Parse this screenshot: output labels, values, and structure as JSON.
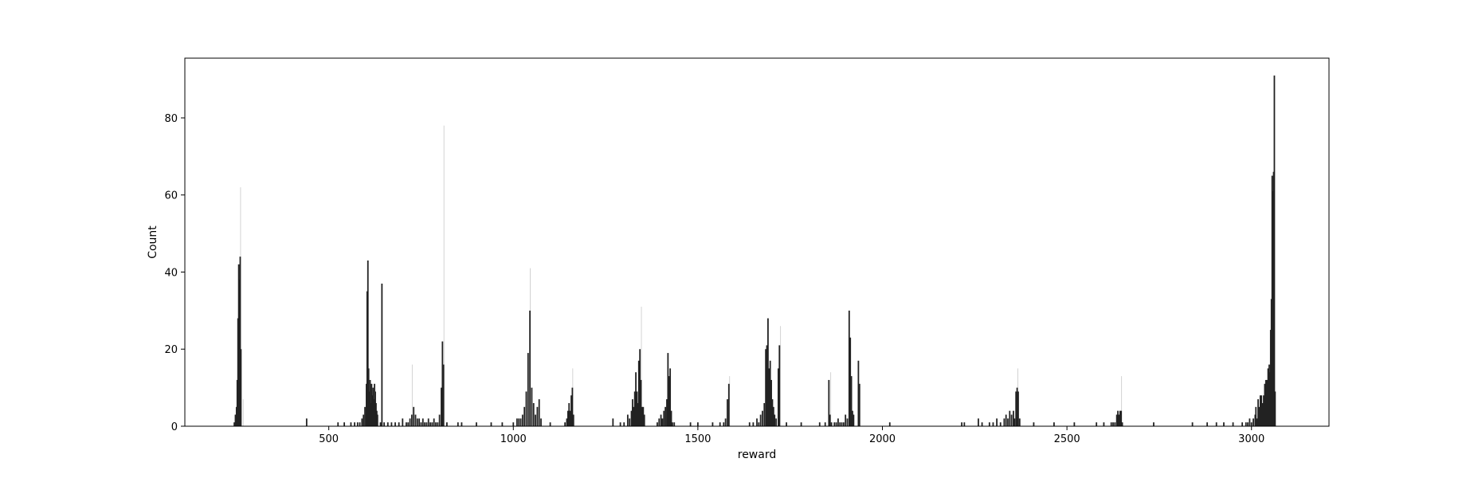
{
  "chart_data": {
    "type": "bar",
    "title": "",
    "xlabel": "reward",
    "ylabel": "Count",
    "xlim": [
      110,
      3210
    ],
    "ylim": [
      0,
      95.5
    ],
    "xticks": [
      500,
      1000,
      1500,
      2000,
      2500,
      3000
    ],
    "yticks": [
      0,
      20,
      40,
      60,
      80
    ],
    "grid": false,
    "legend": "none",
    "bar_color": "#222222",
    "faint_color": "#c8c8c8",
    "series": [
      {
        "values": [
          [
            244,
            1
          ],
          [
            247,
            3
          ],
          [
            250,
            5
          ],
          [
            252,
            12
          ],
          [
            254,
            28
          ],
          [
            256,
            42
          ],
          [
            258,
            38
          ],
          [
            260,
            44
          ],
          [
            262,
            20
          ],
          [
            440,
            2
          ],
          [
            525,
            1
          ],
          [
            542,
            1
          ],
          [
            560,
            1
          ],
          [
            570,
            1
          ],
          [
            578,
            1
          ],
          [
            584,
            1
          ],
          [
            590,
            2
          ],
          [
            594,
            3
          ],
          [
            598,
            5
          ],
          [
            602,
            11
          ],
          [
            604,
            35
          ],
          [
            606,
            43
          ],
          [
            608,
            15
          ],
          [
            610,
            9
          ],
          [
            612,
            12
          ],
          [
            614,
            6
          ],
          [
            616,
            11
          ],
          [
            618,
            8
          ],
          [
            620,
            10
          ],
          [
            622,
            7
          ],
          [
            624,
            11
          ],
          [
            626,
            9
          ],
          [
            628,
            6
          ],
          [
            630,
            4
          ],
          [
            632,
            3
          ],
          [
            640,
            1
          ],
          [
            644,
            37
          ],
          [
            650,
            1
          ],
          [
            660,
            1
          ],
          [
            670,
            1
          ],
          [
            680,
            1
          ],
          [
            690,
            1
          ],
          [
            700,
            2
          ],
          [
            710,
            1
          ],
          [
            715,
            1
          ],
          [
            720,
            2
          ],
          [
            725,
            3
          ],
          [
            730,
            5
          ],
          [
            735,
            3
          ],
          [
            740,
            2
          ],
          [
            745,
            2
          ],
          [
            750,
            1
          ],
          [
            755,
            2
          ],
          [
            760,
            1
          ],
          [
            765,
            1
          ],
          [
            770,
            2
          ],
          [
            775,
            1
          ],
          [
            780,
            1
          ],
          [
            785,
            2
          ],
          [
            790,
            1
          ],
          [
            795,
            1
          ],
          [
            800,
            3
          ],
          [
            805,
            10
          ],
          [
            808,
            22
          ],
          [
            811,
            16
          ],
          [
            820,
            1
          ],
          [
            850,
            1
          ],
          [
            860,
            1
          ],
          [
            900,
            1
          ],
          [
            940,
            1
          ],
          [
            970,
            1
          ],
          [
            1000,
            1
          ],
          [
            1010,
            2
          ],
          [
            1015,
            2
          ],
          [
            1020,
            2
          ],
          [
            1025,
            3
          ],
          [
            1030,
            5
          ],
          [
            1035,
            9
          ],
          [
            1040,
            19
          ],
          [
            1045,
            30
          ],
          [
            1050,
            10
          ],
          [
            1055,
            6
          ],
          [
            1060,
            3
          ],
          [
            1065,
            5
          ],
          [
            1070,
            7
          ],
          [
            1075,
            2
          ],
          [
            1100,
            1
          ],
          [
            1140,
            1
          ],
          [
            1145,
            2
          ],
          [
            1148,
            4
          ],
          [
            1151,
            6
          ],
          [
            1154,
            4
          ],
          [
            1157,
            8
          ],
          [
            1160,
            10
          ],
          [
            1163,
            3
          ],
          [
            1270,
            2
          ],
          [
            1290,
            1
          ],
          [
            1300,
            1
          ],
          [
            1310,
            3
          ],
          [
            1315,
            2
          ],
          [
            1320,
            4
          ],
          [
            1323,
            7
          ],
          [
            1326,
            5
          ],
          [
            1329,
            9
          ],
          [
            1332,
            14
          ],
          [
            1335,
            9
          ],
          [
            1338,
            6
          ],
          [
            1340,
            17
          ],
          [
            1343,
            20
          ],
          [
            1346,
            12
          ],
          [
            1349,
            5
          ],
          [
            1352,
            5
          ],
          [
            1355,
            3
          ],
          [
            1390,
            1
          ],
          [
            1395,
            2
          ],
          [
            1400,
            3
          ],
          [
            1404,
            2
          ],
          [
            1408,
            4
          ],
          [
            1412,
            5
          ],
          [
            1416,
            7
          ],
          [
            1419,
            19
          ],
          [
            1422,
            13
          ],
          [
            1425,
            15
          ],
          [
            1428,
            4
          ],
          [
            1431,
            1
          ],
          [
            1436,
            1
          ],
          [
            1480,
            1
          ],
          [
            1500,
            1
          ],
          [
            1540,
            1
          ],
          [
            1560,
            1
          ],
          [
            1570,
            1
          ],
          [
            1575,
            2
          ],
          [
            1580,
            7
          ],
          [
            1584,
            11
          ],
          [
            1640,
            1
          ],
          [
            1650,
            1
          ],
          [
            1660,
            2
          ],
          [
            1665,
            1
          ],
          [
            1670,
            3
          ],
          [
            1675,
            4
          ],
          [
            1680,
            6
          ],
          [
            1684,
            20
          ],
          [
            1687,
            21
          ],
          [
            1690,
            28
          ],
          [
            1693,
            15
          ],
          [
            1696,
            17
          ],
          [
            1699,
            12
          ],
          [
            1702,
            7
          ],
          [
            1705,
            5
          ],
          [
            1708,
            3
          ],
          [
            1712,
            2
          ],
          [
            1718,
            15
          ],
          [
            1721,
            21
          ],
          [
            1740,
            1
          ],
          [
            1780,
            1
          ],
          [
            1830,
            1
          ],
          [
            1845,
            1
          ],
          [
            1855,
            12
          ],
          [
            1858,
            3
          ],
          [
            1862,
            1
          ],
          [
            1870,
            1
          ],
          [
            1875,
            1
          ],
          [
            1880,
            2
          ],
          [
            1885,
            1
          ],
          [
            1890,
            1
          ],
          [
            1895,
            1
          ],
          [
            1900,
            3
          ],
          [
            1905,
            2
          ],
          [
            1910,
            30
          ],
          [
            1913,
            23
          ],
          [
            1916,
            13
          ],
          [
            1919,
            4
          ],
          [
            1922,
            3
          ],
          [
            1935,
            17
          ],
          [
            1938,
            11
          ],
          [
            2020,
            1
          ],
          [
            2215,
            1
          ],
          [
            2222,
            1
          ],
          [
            2260,
            2
          ],
          [
            2270,
            1
          ],
          [
            2290,
            1
          ],
          [
            2300,
            1
          ],
          [
            2310,
            2
          ],
          [
            2320,
            1
          ],
          [
            2330,
            2
          ],
          [
            2335,
            3
          ],
          [
            2340,
            2
          ],
          [
            2345,
            4
          ],
          [
            2350,
            3
          ],
          [
            2355,
            4
          ],
          [
            2358,
            2
          ],
          [
            2362,
            9
          ],
          [
            2365,
            10
          ],
          [
            2368,
            9
          ],
          [
            2372,
            2
          ],
          [
            2410,
            1
          ],
          [
            2465,
            1
          ],
          [
            2520,
            1
          ],
          [
            2580,
            1
          ],
          [
            2600,
            1
          ],
          [
            2620,
            1
          ],
          [
            2625,
            1
          ],
          [
            2630,
            1
          ],
          [
            2635,
            3
          ],
          [
            2638,
            4
          ],
          [
            2641,
            3
          ],
          [
            2644,
            4
          ],
          [
            2647,
            4
          ],
          [
            2650,
            1
          ],
          [
            2735,
            1
          ],
          [
            2840,
            1
          ],
          [
            2880,
            1
          ],
          [
            2905,
            1
          ],
          [
            2925,
            1
          ],
          [
            2950,
            1
          ],
          [
            2975,
            1
          ],
          [
            2985,
            1
          ],
          [
            2990,
            1
          ],
          [
            2995,
            2
          ],
          [
            3000,
            1
          ],
          [
            3005,
            2
          ],
          [
            3010,
            3
          ],
          [
            3012,
            5
          ],
          [
            3015,
            2
          ],
          [
            3018,
            7
          ],
          [
            3021,
            5
          ],
          [
            3024,
            8
          ],
          [
            3027,
            8
          ],
          [
            3030,
            6
          ],
          [
            3033,
            8
          ],
          [
            3036,
            11
          ],
          [
            3039,
            12
          ],
          [
            3042,
            12
          ],
          [
            3045,
            15
          ],
          [
            3048,
            16
          ],
          [
            3050,
            14
          ],
          [
            3052,
            25
          ],
          [
            3054,
            33
          ],
          [
            3056,
            65
          ],
          [
            3058,
            61
          ],
          [
            3060,
            66
          ],
          [
            3062,
            91
          ],
          [
            3064,
            9
          ]
        ]
      },
      {
        "values": [
          [
            261,
            62
          ],
          [
            268,
            7
          ],
          [
            726,
            16
          ],
          [
            812,
            78
          ],
          [
            1046,
            41
          ],
          [
            1161,
            15
          ],
          [
            1347,
            31
          ],
          [
            1586,
            13
          ],
          [
            1724,
            26
          ],
          [
            1860,
            14
          ],
          [
            2367,
            15
          ],
          [
            2648,
            13
          ]
        ]
      }
    ]
  }
}
